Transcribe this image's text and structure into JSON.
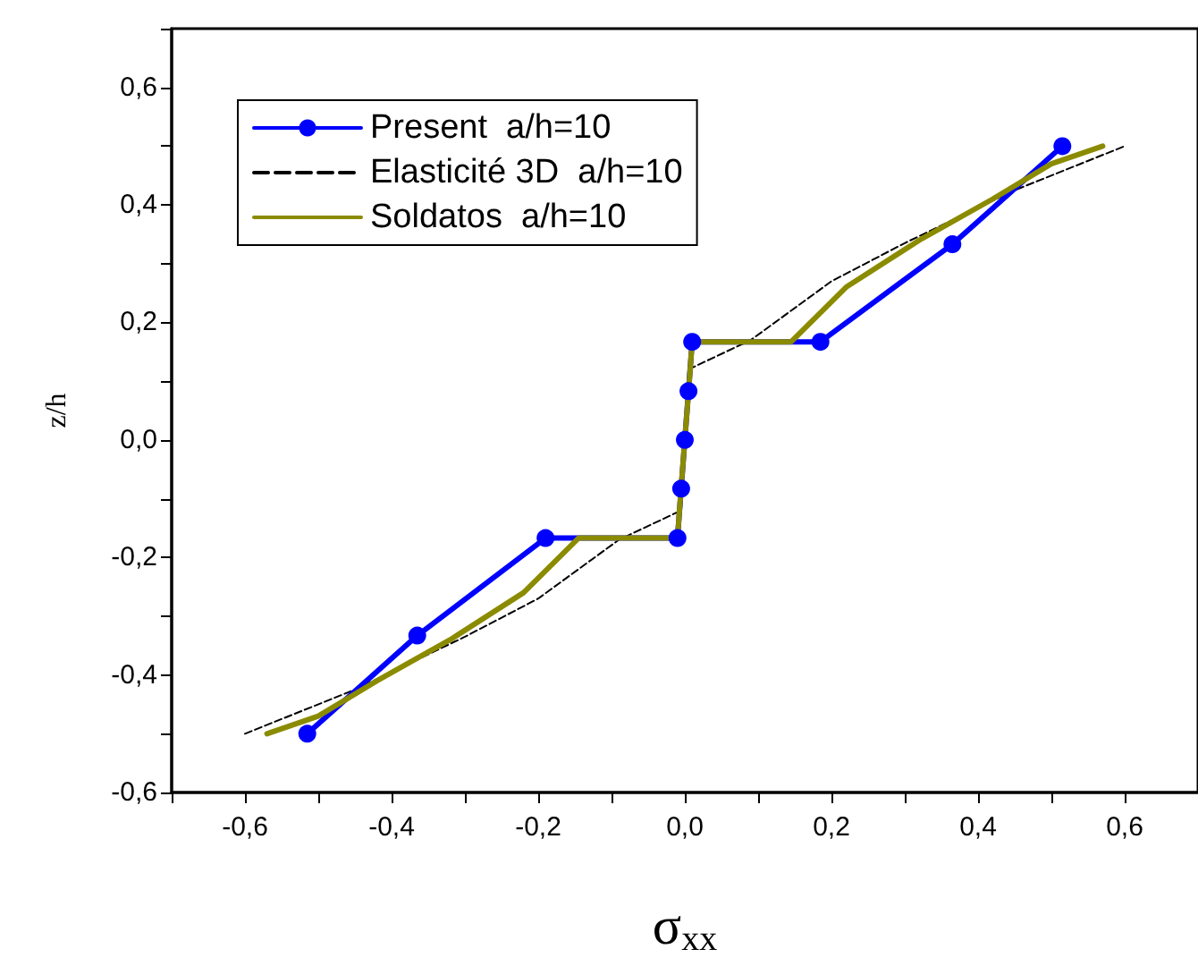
{
  "chart_data": {
    "type": "line",
    "xlabel": "σ$_{xx}$",
    "ylabel": "z/h",
    "xlim": [
      -0.7,
      0.7
    ],
    "ylim": [
      -0.6,
      0.7
    ],
    "xticks": [
      {
        "value": -0.7,
        "label": null
      },
      {
        "value": -0.6,
        "label": "-0,6"
      },
      {
        "value": -0.5,
        "label": null
      },
      {
        "value": -0.4,
        "label": "-0,4"
      },
      {
        "value": -0.3,
        "label": null
      },
      {
        "value": -0.2,
        "label": "-0,2"
      },
      {
        "value": -0.1,
        "label": null
      },
      {
        "value": 0,
        "label": "0,0"
      },
      {
        "value": 0.1,
        "label": null
      },
      {
        "value": 0.2,
        "label": "0,2"
      },
      {
        "value": 0.3,
        "label": null
      },
      {
        "value": 0.4,
        "label": "0,4"
      },
      {
        "value": 0.5,
        "label": null
      },
      {
        "value": 0.6,
        "label": "0,6"
      }
    ],
    "yticks": [
      {
        "value": -0.6,
        "label": "-0,6"
      },
      {
        "value": -0.5,
        "label": null
      },
      {
        "value": -0.4,
        "label": "-0,4"
      },
      {
        "value": -0.3,
        "label": null
      },
      {
        "value": -0.2,
        "label": "-0,2"
      },
      {
        "value": -0.1,
        "label": null
      },
      {
        "value": 0,
        "label": "0,0"
      },
      {
        "value": 0.1,
        "label": null
      },
      {
        "value": 0.2,
        "label": "0,2"
      },
      {
        "value": 0.3,
        "label": null
      },
      {
        "value": 0.4,
        "label": "0,4"
      },
      {
        "value": 0.5,
        "label": null
      },
      {
        "value": 0.6,
        "label": "0,6"
      },
      {
        "value": 0.7,
        "label": null
      }
    ],
    "grid": false,
    "legend": "top left",
    "series": [
      {
        "name": "Present  a/h=10",
        "color": "#0000ff",
        "marker": "circle",
        "line_style": "solid",
        "x": [
          -0.515,
          -0.365,
          -0.19,
          -0.01,
          -0.005,
          0,
          0.005,
          0.01,
          0.185,
          0.365,
          0.515
        ],
        "values": [
          -0.5,
          -0.333,
          -0.167,
          -0.167,
          -0.083,
          0,
          0.083,
          0.167,
          0.167,
          0.333,
          0.5
        ]
      },
      {
        "name": "Elasticité 3D  a/h=10",
        "color": "#000000",
        "marker": "none",
        "line_style": "dashed",
        "x": [
          -0.6,
          -0.45,
          -0.3,
          -0.2,
          -0.09,
          -0.005,
          0,
          0.005,
          0.09,
          0.2,
          0.3,
          0.45,
          0.6
        ],
        "values": [
          -0.5,
          -0.425,
          -0.335,
          -0.27,
          -0.17,
          -0.12,
          0,
          0.12,
          0.17,
          0.27,
          0.335,
          0.425,
          0.5
        ]
      },
      {
        "name": "Soldatos  a/h=10",
        "color": "#8b8b00",
        "marker": "none",
        "line_style": "solid",
        "x": [
          -0.57,
          -0.5,
          -0.42,
          -0.32,
          -0.22,
          -0.145,
          -0.01,
          -0.005,
          0,
          0.005,
          0.01,
          0.145,
          0.22,
          0.32,
          0.42,
          0.5,
          0.57
        ],
        "values": [
          -0.5,
          -0.47,
          -0.41,
          -0.34,
          -0.26,
          -0.167,
          -0.167,
          -0.08,
          0,
          0.08,
          0.167,
          0.167,
          0.26,
          0.34,
          0.41,
          0.47,
          0.5
        ]
      }
    ]
  }
}
